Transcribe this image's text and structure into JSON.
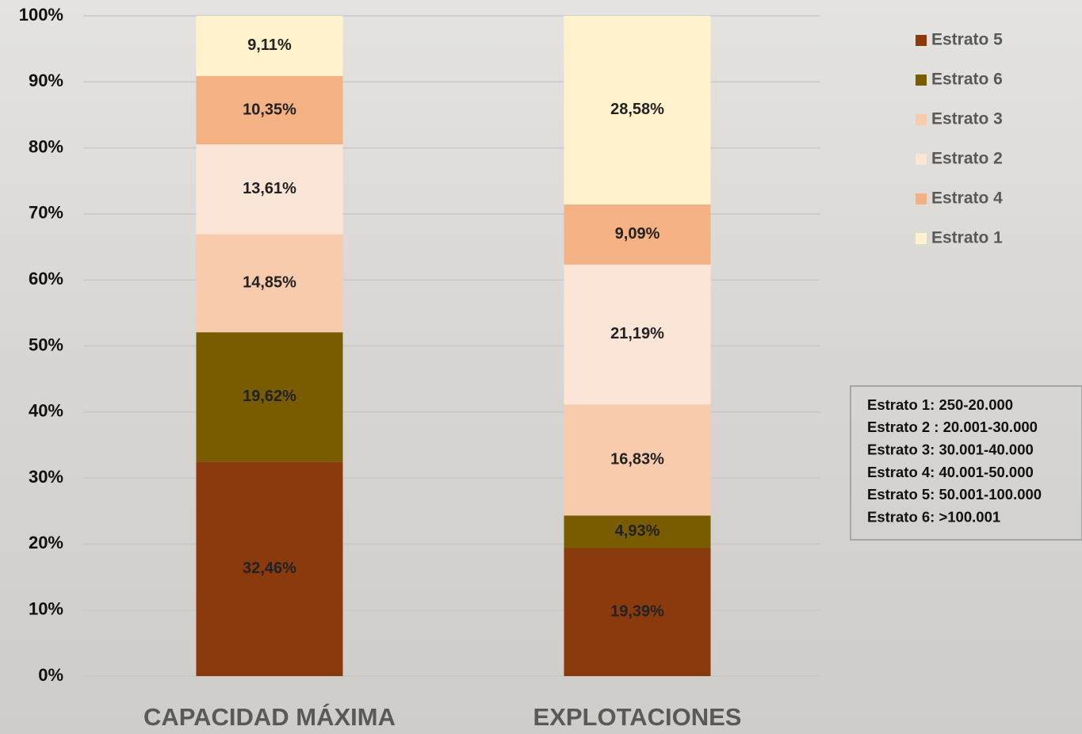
{
  "chart_data": {
    "type": "stacked-bar",
    "categories": [
      "CAPACIDAD MÁXIMA",
      "EXPLOTACIONES"
    ],
    "series": [
      {
        "name": "Estrato 5",
        "color": "#8b3a0e",
        "values": [
          32.46,
          19.39
        ],
        "value_labels": [
          "32,46%",
          "19,39%"
        ]
      },
      {
        "name": "Estrato 6",
        "color": "#7a5c00",
        "values": [
          19.62,
          4.93
        ],
        "value_labels": [
          "19,62%",
          "4,93%"
        ]
      },
      {
        "name": "Estrato 3",
        "color": "#f8cbad",
        "values": [
          14.85,
          16.83
        ],
        "value_labels": [
          "14,85%",
          "16,83%"
        ]
      },
      {
        "name": "Estrato 2",
        "color": "#fbe5d6",
        "values": [
          13.61,
          21.19
        ],
        "value_labels": [
          "13,61%",
          "21,19%"
        ]
      },
      {
        "name": "Estrato 4",
        "color": "#f4b183",
        "values": [
          10.35,
          9.09
        ],
        "value_labels": [
          "10,35%",
          "9,09%"
        ]
      },
      {
        "name": "Estrato 1",
        "color": "#fff2cc",
        "values": [
          9.11,
          28.58
        ],
        "value_labels": [
          "9,11%",
          "28,58%"
        ]
      }
    ],
    "ylim": [
      0,
      100
    ],
    "yticks": [
      {
        "value": 0,
        "label": "0%"
      },
      {
        "value": 10,
        "label": "10%"
      },
      {
        "value": 20,
        "label": "20%"
      },
      {
        "value": 30,
        "label": "30%"
      },
      {
        "value": 40,
        "label": "40%"
      },
      {
        "value": 50,
        "label": "50%"
      },
      {
        "value": 60,
        "label": "60%"
      },
      {
        "value": 70,
        "label": "70%"
      },
      {
        "value": 80,
        "label": "80%"
      },
      {
        "value": 90,
        "label": "90%"
      },
      {
        "value": 100,
        "label": "100%"
      }
    ],
    "grid": true,
    "annotations": [
      "Estrato 1: 250-20.000",
      "Estrato 2 : 20.001-30.000",
      "Estrato 3: 30.001-40.000",
      "Estrato 4: 40.001-50.000",
      "Estrato 5: 50.001-100.000",
      "Estrato 6: >100.001"
    ]
  }
}
